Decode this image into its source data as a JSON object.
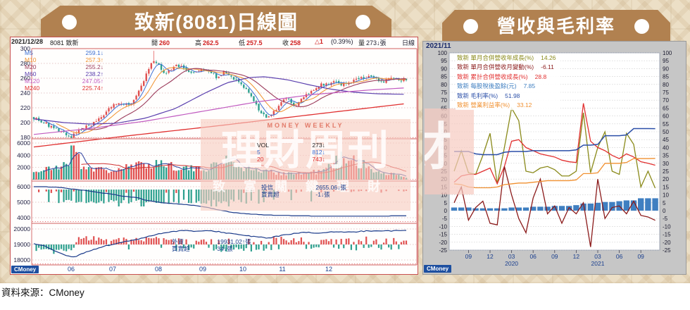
{
  "source_note": "資料來源：CMoney",
  "left_chart": {
    "title": "致新(8081)日線圖",
    "logo": "CMoney",
    "info_bar": {
      "date": "2021/12/28",
      "code_name": "8081 致新",
      "open_label": "開",
      "open": "260",
      "high_label": "高",
      "high": "262.5",
      "low_label": "低",
      "low": "257.5",
      "close_label": "收",
      "close": "258",
      "change": "△1",
      "change_pct": "(0.39%)",
      "volume_label": "量",
      "volume": "273↓張",
      "period": "日線"
    },
    "ma_legend": [
      {
        "label": "M5",
        "value": "259.1↓",
        "color": "#3b6fd4"
      },
      {
        "label": "M10",
        "value": "257.3↑",
        "color": "#f0922e"
      },
      {
        "label": "M20",
        "value": "255.2↓",
        "color": "#9b3a5a"
      },
      {
        "label": "M60",
        "value": "238.2↑",
        "color": "#5a3fae"
      },
      {
        "label": "M120",
        "value": "247.05↑",
        "color": "#c05ac0"
      },
      {
        "label": "M240",
        "value": "225.74↑",
        "color": "#e03030"
      }
    ],
    "y_axis_price": [
      300,
      280,
      260,
      240,
      220,
      200,
      180
    ],
    "volume_panel": {
      "rows": [
        {
          "label": "VOL",
          "value": "273↓",
          "color": "#222222"
        },
        {
          "label": "5",
          "value": "812↓",
          "color": "#3b6fd4"
        },
        {
          "label": "20",
          "value": "743↓",
          "color": "#e03030"
        }
      ],
      "y_axis": [
        6000,
        4000,
        2000
      ]
    },
    "trust_panel": {
      "label1": "投信",
      "label2": "買賣超",
      "value1": "2655.06↓張",
      "value2": "-1↓張",
      "y_axis": [
        6000,
        5000,
        4000
      ]
    },
    "foreign_panel": {
      "label1": "外資",
      "label2": "買賣超",
      "value1": "19931.02↑張",
      "value2": "34↓張",
      "y_axis": [
        20000,
        19000,
        18000
      ]
    },
    "x_labels": [
      "06",
      "07",
      "08",
      "09",
      "10",
      "11",
      "12"
    ],
    "watermark": {
      "line1": "MONEY WEEKLY",
      "line2": "理財周刊",
      "line3a": "致富關鍵",
      "line3b": "理財"
    }
  },
  "right_chart": {
    "title": "營收與毛利率",
    "date": "2021/11",
    "logo": "CMoney",
    "watermark_glyph": "財",
    "legend": [
      {
        "stock": "致新",
        "label": "單月合併營收年成長(%)",
        "value": "14.26",
        "color": "#8a8a1a"
      },
      {
        "stock": "致新",
        "label": "單月合併營收月變動(%)",
        "value": "-6.11",
        "color": "#8b1a1a"
      },
      {
        "stock": "致新",
        "label": "累計合併營收成長(%)",
        "value": "28.8",
        "color": "#e23030"
      },
      {
        "stock": "致新",
        "label": "每股稅後盈餘(元)",
        "value": "7.85",
        "color": "#3f7fc1"
      },
      {
        "stock": "致新",
        "label": "毛利率(%)",
        "value": "51.98",
        "color": "#2b4fa8"
      },
      {
        "stock": "致新",
        "label": "營業利益率(%)",
        "value": "33.12",
        "color": "#f09030"
      }
    ]
  },
  "chart_data": [
    {
      "type": "candlestick",
      "title": "致新(8081)日線圖",
      "period": "daily, 2021/05 - 2021/12/28",
      "x_labels": [
        "06",
        "07",
        "08",
        "09",
        "10",
        "11",
        "12"
      ],
      "price_axis": [
        300,
        280,
        260,
        240,
        220,
        200,
        180
      ],
      "last_bar": {
        "open": 260,
        "high": 262.5,
        "low": 257.5,
        "close": 258,
        "change": 1,
        "change_pct": 0.39,
        "volume_lots": 273
      },
      "ma_last": {
        "M5": 259.1,
        "M10": 257.3,
        "M20": 255.2,
        "M60": 238.2,
        "M120": 247.05,
        "M240": 225.74
      },
      "volume_ma_last": {
        "VOL": 273,
        "MA5": 812,
        "MA20": 743
      },
      "trust_net": {
        "holding_change_label": "2655.06↓張",
        "day_net": "-1↓張"
      },
      "foreign_net": {
        "holding_label": "19931.02↑張",
        "day_net": "34↓張"
      },
      "price_keyframes": [
        [
          0,
          207
        ],
        [
          0.02,
          202
        ],
        [
          0.05,
          193
        ],
        [
          0.08,
          185
        ],
        [
          0.1,
          181
        ],
        [
          0.12,
          188
        ],
        [
          0.15,
          196
        ],
        [
          0.18,
          205
        ],
        [
          0.21,
          222
        ],
        [
          0.235,
          228
        ],
        [
          0.255,
          223
        ],
        [
          0.27,
          230
        ],
        [
          0.285,
          244
        ],
        [
          0.3,
          262
        ],
        [
          0.315,
          280
        ],
        [
          0.325,
          285
        ],
        [
          0.34,
          272
        ],
        [
          0.35,
          264
        ],
        [
          0.365,
          271
        ],
        [
          0.385,
          277
        ],
        [
          0.41,
          272
        ],
        [
          0.43,
          268
        ],
        [
          0.45,
          272
        ],
        [
          0.47,
          268
        ],
        [
          0.49,
          262
        ],
        [
          0.51,
          267
        ],
        [
          0.53,
          262
        ],
        [
          0.55,
          254
        ],
        [
          0.57,
          245
        ],
        [
          0.585,
          233
        ],
        [
          0.6,
          220
        ],
        [
          0.615,
          210
        ],
        [
          0.63,
          207
        ],
        [
          0.645,
          214
        ],
        [
          0.66,
          224
        ],
        [
          0.675,
          232
        ],
        [
          0.69,
          228
        ],
        [
          0.705,
          224
        ],
        [
          0.72,
          231
        ],
        [
          0.74,
          240
        ],
        [
          0.755,
          246
        ],
        [
          0.775,
          252
        ],
        [
          0.8,
          255
        ],
        [
          0.825,
          251
        ],
        [
          0.85,
          256
        ],
        [
          0.875,
          259
        ],
        [
          0.9,
          262
        ],
        [
          0.92,
          258
        ],
        [
          0.94,
          256
        ],
        [
          0.96,
          260
        ],
        [
          0.98,
          257
        ],
        [
          1,
          258
        ]
      ],
      "volume_keyframes": [
        [
          0,
          1300
        ],
        [
          0.06,
          1900
        ],
        [
          0.095,
          3200
        ],
        [
          0.105,
          5600
        ],
        [
          0.13,
          2200
        ],
        [
          0.2,
          1400
        ],
        [
          0.27,
          2200
        ],
        [
          0.33,
          2800
        ],
        [
          0.38,
          2200
        ],
        [
          0.44,
          1600
        ],
        [
          0.5,
          2600
        ],
        [
          0.52,
          4300
        ],
        [
          0.55,
          2200
        ],
        [
          0.6,
          1500
        ],
        [
          0.66,
          1100
        ],
        [
          0.72,
          1000
        ],
        [
          0.78,
          1500
        ],
        [
          0.82,
          3600
        ],
        [
          0.85,
          4000
        ],
        [
          0.88,
          2600
        ],
        [
          0.92,
          1400
        ],
        [
          0.96,
          900
        ],
        [
          1,
          350
        ]
      ],
      "volume_axis": [
        6000,
        4000,
        2000
      ],
      "trust_axis": [
        6000,
        5000,
        4000
      ],
      "trust_line_keyframes": [
        [
          0,
          6000
        ],
        [
          0.06,
          5980
        ],
        [
          0.1,
          5860
        ],
        [
          0.14,
          5750
        ],
        [
          0.18,
          5600
        ],
        [
          0.2,
          5560
        ],
        [
          0.24,
          5380
        ],
        [
          0.28,
          5300
        ],
        [
          0.3,
          5120
        ],
        [
          0.34,
          4980
        ],
        [
          0.38,
          4900
        ],
        [
          0.42,
          4820
        ],
        [
          0.46,
          4700
        ],
        [
          0.5,
          4480
        ],
        [
          0.54,
          4320
        ],
        [
          0.58,
          4240
        ],
        [
          0.62,
          4180
        ],
        [
          0.66,
          4150
        ],
        [
          0.72,
          4120
        ],
        [
          0.78,
          4100
        ],
        [
          0.84,
          4090
        ],
        [
          0.9,
          4090
        ],
        [
          0.94,
          4110
        ],
        [
          1,
          4120
        ]
      ],
      "foreign_axis": [
        20000,
        19000,
        18000
      ],
      "foreign_line_keyframes": [
        [
          0,
          19050
        ],
        [
          0.03,
          18900
        ],
        [
          0.06,
          18550
        ],
        [
          0.09,
          18250
        ],
        [
          0.11,
          18200
        ],
        [
          0.14,
          18500
        ],
        [
          0.17,
          18750
        ],
        [
          0.2,
          18950
        ],
        [
          0.24,
          19150
        ],
        [
          0.28,
          19350
        ],
        [
          0.32,
          19600
        ],
        [
          0.36,
          19800
        ],
        [
          0.4,
          19900
        ],
        [
          0.44,
          19850
        ],
        [
          0.48,
          19880
        ],
        [
          0.52,
          19740
        ],
        [
          0.56,
          19600
        ],
        [
          0.6,
          19480
        ],
        [
          0.63,
          19420
        ],
        [
          0.66,
          19560
        ],
        [
          0.7,
          19700
        ],
        [
          0.73,
          19780
        ],
        [
          0.76,
          19730
        ],
        [
          0.8,
          19820
        ],
        [
          0.84,
          19780
        ],
        [
          0.88,
          19850
        ],
        [
          0.92,
          19900
        ],
        [
          0.96,
          19870
        ],
        [
          1,
          19931
        ]
      ],
      "note": "series shapes estimated from chart pixels"
    },
    {
      "type": "line+bar",
      "title": "營收與毛利率",
      "as_of": "2021/11",
      "ylim": [
        -25,
        100
      ],
      "ystep": 5,
      "months": [
        "2019/07",
        "2019/08",
        "2019/09",
        "2019/10",
        "2019/11",
        "2019/12",
        "2020/01",
        "2020/02",
        "2020/03",
        "2020/04",
        "2020/05",
        "2020/06",
        "2020/07",
        "2020/08",
        "2020/09",
        "2020/10",
        "2020/11",
        "2020/12",
        "2021/01",
        "2021/02",
        "2021/03",
        "2021/04",
        "2021/05",
        "2021/06",
        "2021/07",
        "2021/08",
        "2021/09",
        "2021/10",
        "2021/11"
      ],
      "x_ticks": [
        {
          "i": 2,
          "t": "09"
        },
        {
          "i": 5,
          "t": "12"
        },
        {
          "i": 8,
          "t": "03",
          "year": "2020"
        },
        {
          "i": 11,
          "t": "06"
        },
        {
          "i": 14,
          "t": "09"
        },
        {
          "i": 17,
          "t": "12"
        },
        {
          "i": 20,
          "t": "03",
          "year": "2021"
        },
        {
          "i": 23,
          "t": "06"
        },
        {
          "i": 26,
          "t": "09"
        }
      ],
      "series": [
        {
          "name": "單月合併營收年成長(%)",
          "kind": "line",
          "color": "#8a8a1a",
          "last": 14.26,
          "values": [
            25,
            38,
            24,
            23,
            35,
            49,
            17,
            40,
            65,
            57,
            25,
            24,
            27,
            28,
            26,
            22,
            22,
            25,
            62,
            24,
            40,
            50,
            25,
            23,
            49,
            42,
            15,
            25,
            14.26
          ]
        },
        {
          "name": "單月合併營收月變動(%)",
          "kind": "line",
          "color": "#8b1a1a",
          "last": -6.11,
          "values": [
            5,
            15,
            -6,
            2,
            6,
            -8,
            -9,
            28,
            10,
            -5,
            -14,
            8,
            20,
            -2,
            3,
            -8,
            2,
            -2,
            5,
            -23,
            20,
            -5,
            2,
            3,
            -2,
            6,
            -3,
            -4,
            -6.11
          ]
        },
        {
          "name": "累計合併營收成長(%)",
          "kind": "line",
          "color": "#e23030",
          "last": 28.8,
          "values": [
            18,
            22,
            23,
            23,
            25,
            27,
            17,
            28,
            44,
            45,
            40,
            38,
            36,
            35,
            34,
            32,
            31,
            30.5,
            68,
            44,
            40,
            38,
            35,
            33,
            36,
            34,
            31,
            30,
            28.8
          ]
        },
        {
          "name": "每股稅後盈餘(元)",
          "kind": "bar",
          "color": "#3f7fc1",
          "last": 7.85,
          "values": [
            2,
            2,
            2,
            1.5,
            1.5,
            1.5,
            1.5,
            1.5,
            2,
            2,
            2,
            2.5,
            2.5,
            2.5,
            3,
            3,
            3,
            3.5,
            4.5,
            4.5,
            5,
            5.5,
            5.5,
            6,
            6.5,
            6.5,
            7.85,
            7.85,
            7.85
          ]
        },
        {
          "name": "毛利率(%)",
          "kind": "line",
          "color": "#2b4fa8",
          "last": 51.98,
          "values": [
            37.5,
            37.5,
            37.5,
            36,
            35.5,
            35.5,
            35.5,
            37,
            37.5,
            37.5,
            37.5,
            38,
            38,
            38,
            38,
            38,
            38,
            38.5,
            41.5,
            41.5,
            42,
            47.5,
            47.5,
            47.5,
            48,
            52,
            52,
            52,
            51.98
          ]
        },
        {
          "name": "營業利益率(%)",
          "kind": "line",
          "color": "#f09030",
          "last": 33.12,
          "values": [
            17,
            16.5,
            15,
            14.5,
            14.5,
            14.5,
            15,
            16.5,
            17,
            17.5,
            17.5,
            18,
            18.5,
            19,
            19,
            19,
            19,
            19.5,
            23.5,
            23.5,
            24,
            30,
            30,
            30,
            30.5,
            33,
            33,
            33,
            33.12
          ]
        }
      ]
    }
  ]
}
